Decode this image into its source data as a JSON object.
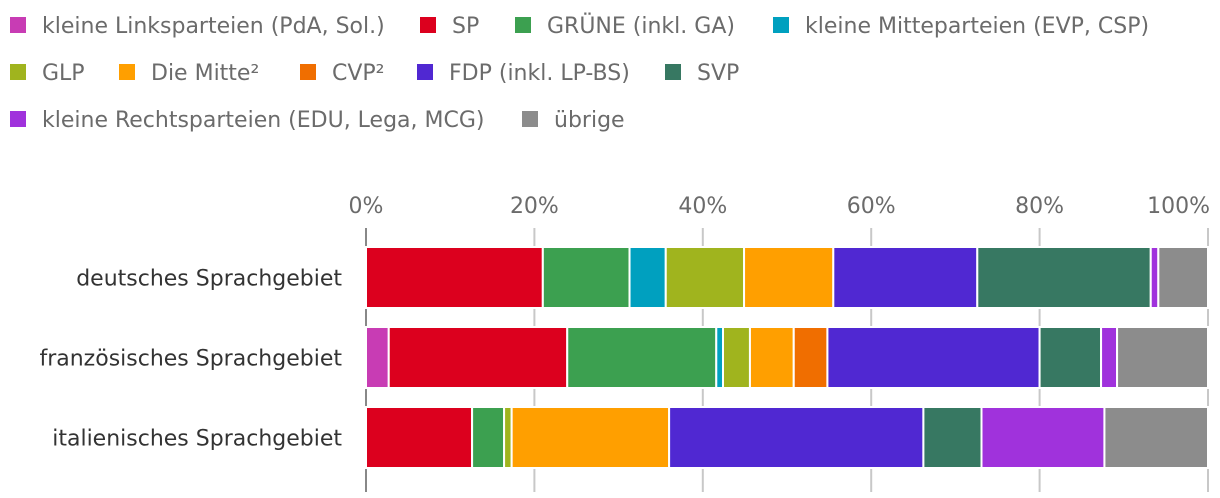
{
  "chart_data": {
    "type": "bar",
    "orientation": "horizontal",
    "stacked": true,
    "normalized": true,
    "xlim": [
      0,
      100
    ],
    "x_ticks": [
      "0%",
      "20%",
      "40%",
      "60%",
      "80%",
      "100%"
    ],
    "x_tick_values": [
      0,
      20,
      40,
      60,
      80,
      100
    ],
    "grid": true,
    "legend_position": "top",
    "categories": [
      "deutsches Sprachgebiet",
      "französisches Sprachgebiet",
      "italienisches Sprachgebiet"
    ],
    "series": [
      {
        "name": "kleine Linksparteien (PdA, Sol.)",
        "color": "#c83cb4",
        "values": [
          0,
          2.7,
          0
        ]
      },
      {
        "name": "SP",
        "color": "#dc001e",
        "values": [
          21.0,
          21.2,
          12.6
        ]
      },
      {
        "name": "GRÜNE (inkl. GA)",
        "color": "#3ca050",
        "values": [
          10.3,
          17.7,
          3.8
        ]
      },
      {
        "name": "kleine Mitteparteien (EVP, CSP)",
        "color": "#00a0bf",
        "values": [
          4.3,
          0.8,
          0
        ]
      },
      {
        "name": "GLP",
        "color": "#a0b41e",
        "values": [
          9.3,
          3.2,
          0.9
        ]
      },
      {
        "name": "Die Mitte²",
        "color": "#ff9f00",
        "values": [
          10.6,
          5.2,
          18.7
        ]
      },
      {
        "name": "CVP²",
        "color": "#f06e00",
        "values": [
          0,
          4.0,
          0
        ]
      },
      {
        "name": "FDP (inkl. LP-BS)",
        "color": "#5028d2",
        "values": [
          17.1,
          25.2,
          30.2
        ]
      },
      {
        "name": "SVP",
        "color": "#377862",
        "values": [
          20.6,
          7.3,
          6.9
        ]
      },
      {
        "name": "kleine Rechtsparteien (EDU, Lega, MCG)",
        "color": "#a032dc",
        "values": [
          0.9,
          1.9,
          14.6
        ]
      },
      {
        "name": "übrige",
        "color": "#8c8c8c",
        "values": [
          5.9,
          10.8,
          12.3
        ]
      }
    ]
  }
}
